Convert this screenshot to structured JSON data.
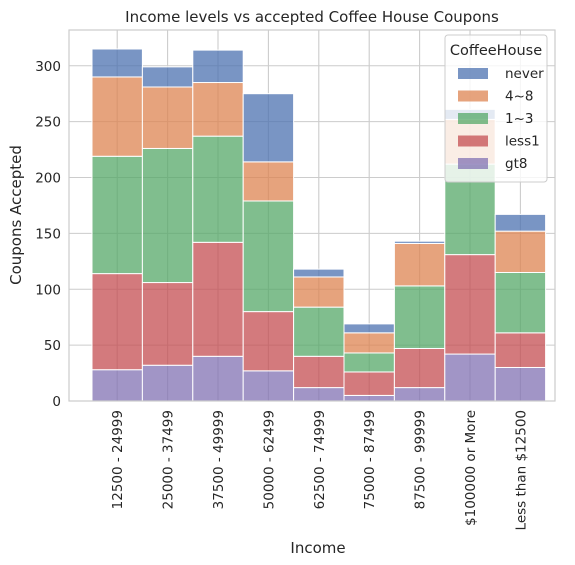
{
  "chart_data": {
    "type": "bar",
    "stacked": true,
    "title": "Income levels vs accepted Coffee House Coupons",
    "xlabel": "Income",
    "ylabel": "Coupons Accepted",
    "ylim": [
      0,
      332
    ],
    "yticks": [
      0,
      50,
      100,
      150,
      200,
      250,
      300
    ],
    "grid": true,
    "legend_title": "CoffeeHouse",
    "legend_position": "top-right",
    "legend_entries": [
      "never",
      "4~8",
      "1~3",
      "less1",
      "gt8"
    ],
    "categories": [
      "12500 - 24999",
      "25000 - 37499",
      "37500 - 49999",
      "50000 - 62499",
      "62500 - 74999",
      "75000 - 87499",
      "87500 - 99999",
      "$100000 or More",
      "Less than $12500"
    ],
    "series": [
      {
        "name": "gt8",
        "color": "#8172b3",
        "values": [
          28,
          32,
          40,
          27,
          12,
          5,
          12,
          42,
          30
        ]
      },
      {
        "name": "less1",
        "color": "#c44e52",
        "values": [
          86,
          74,
          102,
          53,
          28,
          21,
          35,
          89,
          31
        ]
      },
      {
        "name": "1~3",
        "color": "#55a868",
        "values": [
          105,
          120,
          95,
          99,
          44,
          17,
          56,
          81,
          54
        ]
      },
      {
        "name": "4~8",
        "color": "#dd8452",
        "values": [
          71,
          55,
          48,
          35,
          27,
          18,
          38,
          40,
          37
        ]
      },
      {
        "name": "never",
        "color": "#4c72b0",
        "values": [
          25,
          18,
          29,
          61,
          7,
          8,
          2,
          9,
          15
        ]
      }
    ]
  }
}
